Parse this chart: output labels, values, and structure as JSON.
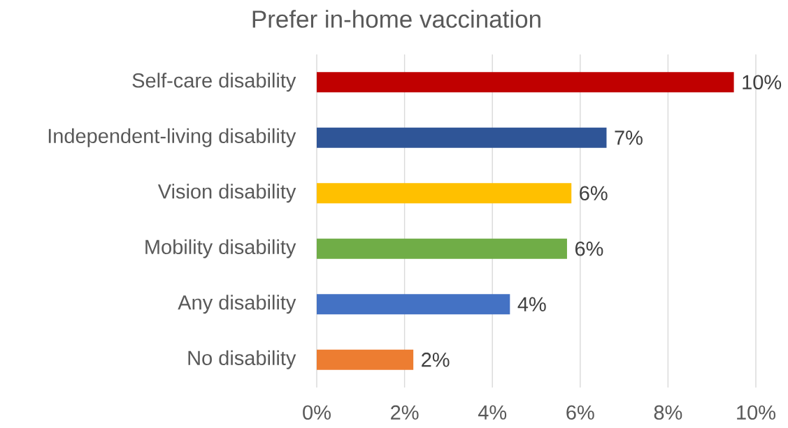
{
  "chart_data": {
    "type": "bar",
    "orientation": "horizontal",
    "title": "Prefer in-home vaccination",
    "categories": [
      "Self-care disability",
      "Independent-living disability",
      "Vision disability",
      "Mobility disability",
      "Any disability",
      "No disability"
    ],
    "values": [
      9.5,
      6.6,
      5.8,
      5.7,
      4.4,
      2.2
    ],
    "colors": [
      "#c00000",
      "#2f5597",
      "#ffc000",
      "#70ad47",
      "#4472c4",
      "#ed7d31"
    ],
    "value_labels": [
      "10%",
      "7%",
      "6%",
      "6%",
      "4%",
      "2%"
    ],
    "xlim": [
      0,
      10
    ],
    "xticks": [
      {
        "value": 0,
        "label": "0%"
      },
      {
        "value": 2,
        "label": "2%"
      },
      {
        "value": 4,
        "label": "4%"
      },
      {
        "value": 6,
        "label": "6%"
      },
      {
        "value": 8,
        "label": "8%"
      },
      {
        "value": 10,
        "label": "10%"
      }
    ],
    "grid": "x"
  }
}
